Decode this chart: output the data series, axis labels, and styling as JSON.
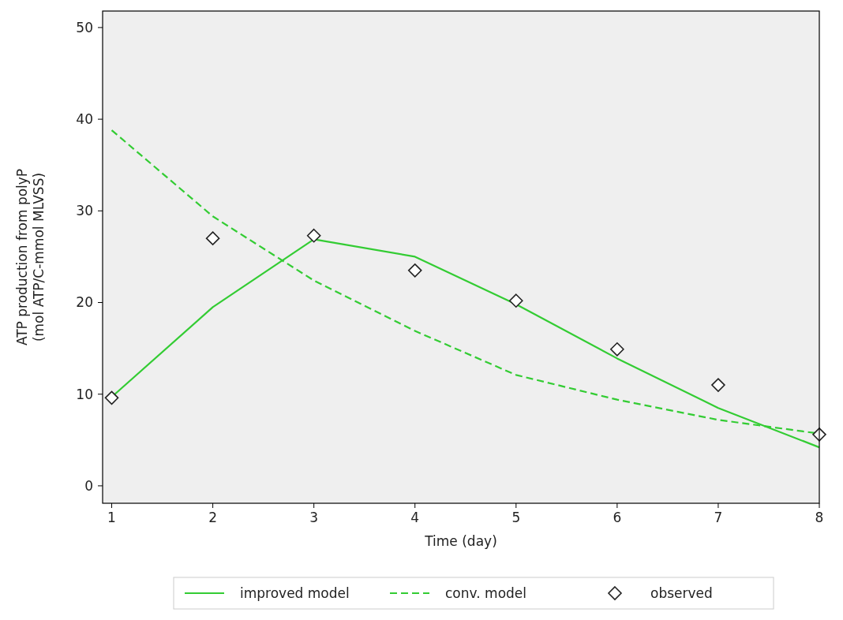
{
  "chart_data": {
    "type": "line",
    "xlabel": "Time (day)",
    "ylabel": "ATP production from polyP\n(mol ATP/C-mmol MLVSS)",
    "x": [
      1,
      2,
      3,
      4,
      5,
      6,
      7,
      8
    ],
    "series": [
      {
        "name": "improved model",
        "color": "#33cc33",
        "line_style": "solid",
        "values": [
          9.7,
          19.5,
          26.9,
          25.0,
          19.8,
          13.9,
          8.5,
          4.2
        ]
      },
      {
        "name": "conv. model",
        "color": "#33cc33",
        "line_style": "dashed",
        "values": [
          38.8,
          29.4,
          22.4,
          16.9,
          12.1,
          9.4,
          7.2,
          5.7
        ]
      },
      {
        "name": "observed",
        "type": "scatter",
        "color": "#222222",
        "marker": "diamond",
        "values": [
          9.6,
          27.0,
          27.3,
          23.5,
          20.2,
          14.9,
          11.0,
          5.6
        ]
      }
    ],
    "xlim": [
      0.91,
      8.0
    ],
    "xticks": [
      1,
      2,
      3,
      4,
      5,
      6,
      7,
      8
    ],
    "ylim": [
      -1.9,
      51.8
    ],
    "yticks": [
      0,
      10,
      20,
      30,
      40,
      50
    ],
    "grid": false,
    "legend": "bottom"
  }
}
